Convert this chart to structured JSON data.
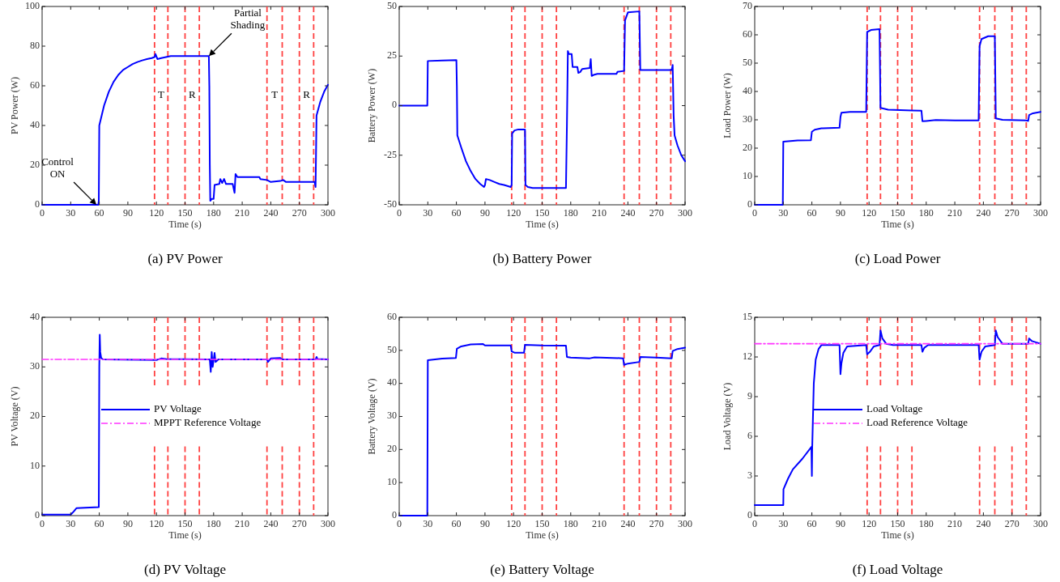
{
  "chart_data": [
    {
      "type": "line",
      "title": "(a) PV Power",
      "xlabel": "Time (s)",
      "ylabel": "PV Power (W)",
      "xlim": [
        0,
        300
      ],
      "xticks": [
        0,
        30,
        60,
        90,
        120,
        150,
        180,
        210,
        240,
        270,
        300
      ],
      "ylim": [
        0,
        100
      ],
      "yticks": [
        0,
        20,
        40,
        60,
        80,
        100
      ],
      "series": [
        {
          "color": "#0000ff",
          "line_style": "solid",
          "x": [
            0,
            59,
            59.5,
            60,
            62,
            65,
            70,
            75,
            80,
            85,
            90,
            95,
            100,
            105,
            110,
            115,
            118,
            119,
            121,
            125,
            130,
            135,
            150,
            165,
            175,
            175.5,
            176,
            176.5,
            178,
            180,
            181,
            186,
            187,
            189,
            191,
            193,
            200,
            202,
            203,
            205,
            228,
            229,
            236,
            240,
            250,
            253,
            256,
            270,
            286,
            287,
            288,
            292,
            296,
            300
          ],
          "values": [
            0,
            0,
            2,
            40,
            44,
            50,
            57,
            62,
            65.5,
            68,
            69.5,
            71,
            72,
            72.8,
            73.5,
            74,
            74.5,
            76,
            73.5,
            74,
            74.5,
            75,
            75,
            75,
            75,
            60,
            20,
            2,
            3,
            3,
            10,
            10.5,
            13,
            11,
            13,
            10.5,
            10.5,
            6,
            15.5,
            14,
            14,
            13,
            12.5,
            11.5,
            12,
            12.5,
            11.5,
            11.5,
            11.5,
            9,
            45,
            52,
            57,
            60.5
          ]
        }
      ],
      "ref_lines": [
        {
          "axis": "x",
          "value": 118,
          "color": "#ff4040",
          "line_style": "dashed"
        },
        {
          "axis": "x",
          "value": 132,
          "color": "#ff4040",
          "line_style": "dashed"
        },
        {
          "axis": "x",
          "value": 150,
          "color": "#ff4040",
          "line_style": "dashed"
        },
        {
          "axis": "x",
          "value": 165,
          "color": "#ff4040",
          "line_style": "dashed"
        },
        {
          "axis": "x",
          "value": 236,
          "color": "#ff4040",
          "line_style": "dashed"
        },
        {
          "axis": "x",
          "value": 252,
          "color": "#ff4040",
          "line_style": "dashed"
        },
        {
          "axis": "x",
          "value": 270,
          "color": "#ff4040",
          "line_style": "dashed"
        },
        {
          "axis": "x",
          "value": 285,
          "color": "#ff4040",
          "line_style": "dashed"
        }
      ],
      "annotations": [
        {
          "text": "Control ON",
          "x": 57,
          "y": 0
        },
        {
          "text": "Partial Shading",
          "x": 175,
          "y": 75
        },
        "T",
        "R",
        "T",
        "R"
      ]
    },
    {
      "type": "line",
      "title": "(b) Battery Power",
      "xlabel": "Time (s)",
      "ylabel": "Battery Power (W)",
      "xlim": [
        0,
        300
      ],
      "xticks": [
        0,
        30,
        60,
        90,
        120,
        150,
        180,
        210,
        240,
        270,
        300
      ],
      "ylim": [
        -50,
        50
      ],
      "yticks": [
        -50,
        -25,
        0,
        25,
        50
      ],
      "series": [
        {
          "color": "#0000ff",
          "line_style": "solid",
          "x": [
            0,
            29.5,
            30,
            45,
            60,
            60.5,
            61,
            65,
            70,
            75,
            80,
            85,
            89,
            90,
            91,
            95,
            100,
            105,
            110,
            117,
            118,
            118.5,
            121,
            125,
            132,
            132.5,
            135,
            140,
            165,
            175,
            176,
            177,
            178,
            181,
            182,
            187,
            188,
            190,
            192,
            200,
            201,
            202,
            204,
            208,
            228,
            229,
            236,
            237,
            240,
            252,
            253,
            270,
            286,
            287,
            288,
            289,
            292,
            296,
            300
          ],
          "values": [
            0,
            0,
            22.5,
            22.8,
            23,
            10,
            -15,
            -21,
            -28,
            -33,
            -37,
            -39.5,
            -41,
            -40,
            -37,
            -37.5,
            -38.5,
            -39.5,
            -40,
            -41,
            -40,
            -14,
            -12.5,
            -12,
            -12,
            -40,
            -41,
            -41.5,
            -41.5,
            -41.5,
            -10,
            27.5,
            26,
            26,
            19.5,
            19.5,
            16.5,
            17,
            18.5,
            19,
            23.5,
            15,
            15.5,
            16,
            16,
            17,
            17.5,
            43,
            47,
            47.5,
            18,
            18,
            18,
            20.5,
            -5,
            -15,
            -20,
            -25,
            -28
          ]
        }
      ],
      "ref_lines": [
        {
          "axis": "x",
          "value": 118,
          "color": "#ff4040",
          "line_style": "dashed"
        },
        {
          "axis": "x",
          "value": 132,
          "color": "#ff4040",
          "line_style": "dashed"
        },
        {
          "axis": "x",
          "value": 150,
          "color": "#ff4040",
          "line_style": "dashed"
        },
        {
          "axis": "x",
          "value": 165,
          "color": "#ff4040",
          "line_style": "dashed"
        },
        {
          "axis": "x",
          "value": 236,
          "color": "#ff4040",
          "line_style": "dashed"
        },
        {
          "axis": "x",
          "value": 252,
          "color": "#ff4040",
          "line_style": "dashed"
        },
        {
          "axis": "x",
          "value": 270,
          "color": "#ff4040",
          "line_style": "dashed"
        },
        {
          "axis": "x",
          "value": 285,
          "color": "#ff4040",
          "line_style": "dashed"
        }
      ]
    },
    {
      "type": "line",
      "title": "(c) Load Power",
      "xlabel": "Time (s)",
      "ylabel": "Load Power (W)",
      "xlim": [
        0,
        300
      ],
      "xticks": [
        0,
        30,
        60,
        90,
        120,
        150,
        180,
        210,
        240,
        270,
        300
      ],
      "ylim": [
        0,
        70
      ],
      "yticks": [
        0,
        10,
        20,
        30,
        40,
        50,
        60,
        70
      ],
      "series": [
        {
          "color": "#0000ff",
          "line_style": "solid",
          "x": [
            0,
            29.5,
            30,
            45,
            59,
            60,
            63,
            70,
            89,
            90,
            91,
            100,
            117,
            118,
            122,
            131,
            132,
            140,
            165,
            175,
            176,
            180,
            190,
            210,
            235,
            236,
            238,
            245,
            252,
            253,
            260,
            285,
            287,
            288,
            292,
            300
          ],
          "values": [
            0,
            0,
            22.3,
            22.7,
            22.8,
            25.8,
            26.5,
            27,
            27.2,
            31,
            32.5,
            32.8,
            32.8,
            61,
            61.7,
            62,
            34.2,
            33.6,
            33.3,
            33.2,
            29.5,
            29.6,
            29.9,
            29.8,
            29.8,
            56,
            58.5,
            59.5,
            59.5,
            30.5,
            30,
            29.8,
            29.6,
            31.7,
            32.3,
            32.8
          ]
        }
      ],
      "ref_lines": [
        {
          "axis": "x",
          "value": 118,
          "color": "#ff4040",
          "line_style": "dashed"
        },
        {
          "axis": "x",
          "value": 132,
          "color": "#ff4040",
          "line_style": "dashed"
        },
        {
          "axis": "x",
          "value": 150,
          "color": "#ff4040",
          "line_style": "dashed"
        },
        {
          "axis": "x",
          "value": 165,
          "color": "#ff4040",
          "line_style": "dashed"
        },
        {
          "axis": "x",
          "value": 236,
          "color": "#ff4040",
          "line_style": "dashed"
        },
        {
          "axis": "x",
          "value": 252,
          "color": "#ff4040",
          "line_style": "dashed"
        },
        {
          "axis": "x",
          "value": 270,
          "color": "#ff4040",
          "line_style": "dashed"
        },
        {
          "axis": "x",
          "value": 285,
          "color": "#ff4040",
          "line_style": "dashed"
        }
      ]
    },
    {
      "type": "line",
      "title": "(d) PV Voltage",
      "xlabel": "Time (s)",
      "ylabel": "PV Voltage (V)",
      "xlim": [
        0,
        300
      ],
      "xticks": [
        0,
        30,
        60,
        90,
        120,
        150,
        180,
        210,
        240,
        270,
        300
      ],
      "ylim": [
        0,
        40
      ],
      "yticks": [
        0,
        10,
        20,
        30,
        40
      ],
      "legend": "center right",
      "series": [
        {
          "name": "PV Voltage",
          "color": "#0000ff",
          "line_style": "solid",
          "x": [
            0,
            30,
            33,
            36,
            45,
            59.5,
            60,
            60.5,
            61,
            62,
            64,
            120,
            125,
            130,
            176,
            177,
            178,
            179,
            181,
            182,
            185,
            236,
            237,
            240,
            250,
            252,
            287,
            288,
            289,
            300
          ],
          "values": [
            0.2,
            0.2,
            0.8,
            1.5,
            1.6,
            1.7,
            30,
            36.5,
            33,
            31.8,
            31.5,
            31.4,
            31.7,
            31.6,
            31.5,
            29,
            33,
            30,
            32.8,
            31,
            31.5,
            31.5,
            31,
            31.7,
            31.8,
            31.5,
            31.5,
            32,
            31.6,
            31.5
          ]
        },
        {
          "name": "MPPT Reference Voltage",
          "color": "#ff33ff",
          "line_style": "dashed",
          "x": [
            0,
            300
          ],
          "values": [
            31.5,
            31.5
          ]
        }
      ],
      "ref_lines": [
        {
          "axis": "x",
          "value": 118,
          "color": "#ff4040",
          "line_style": "dashed"
        },
        {
          "axis": "x",
          "value": 132,
          "color": "#ff4040",
          "line_style": "dashed"
        },
        {
          "axis": "x",
          "value": 150,
          "color": "#ff4040",
          "line_style": "dashed"
        },
        {
          "axis": "x",
          "value": 165,
          "color": "#ff4040",
          "line_style": "dashed"
        },
        {
          "axis": "x",
          "value": 236,
          "color": "#ff4040",
          "line_style": "dashed"
        },
        {
          "axis": "x",
          "value": 252,
          "color": "#ff4040",
          "line_style": "dashed"
        },
        {
          "axis": "x",
          "value": 270,
          "color": "#ff4040",
          "line_style": "dashed"
        },
        {
          "axis": "x",
          "value": 285,
          "color": "#ff4040",
          "line_style": "dashed"
        }
      ]
    },
    {
      "type": "line",
      "title": "(e) Battery Voltage",
      "xlabel": "Time (s)",
      "ylabel": "Battery Voltage (V)",
      "xlim": [
        0,
        300
      ],
      "xticks": [
        0,
        30,
        60,
        90,
        120,
        150,
        180,
        210,
        240,
        270,
        300
      ],
      "ylim": [
        0,
        60
      ],
      "yticks": [
        0,
        10,
        20,
        30,
        40,
        50,
        60
      ],
      "series": [
        {
          "color": "#0000ff",
          "line_style": "solid",
          "x": [
            0,
            29.5,
            30,
            45,
            59.5,
            60.5,
            65,
            75,
            88,
            90,
            117,
            118,
            121,
            131,
            132,
            150,
            175,
            176,
            180,
            200,
            205,
            235,
            236,
            240,
            252,
            253,
            270,
            286,
            287,
            292,
            300
          ],
          "values": [
            0,
            0,
            47,
            47.5,
            47.7,
            50.5,
            51.2,
            51.8,
            51.9,
            51.5,
            51.5,
            49.7,
            49.3,
            49.3,
            51.7,
            51.5,
            51.4,
            48,
            47.8,
            47.6,
            47.9,
            47.6,
            45.6,
            46,
            46.5,
            48,
            47.8,
            47.6,
            49.8,
            50.4,
            50.8
          ]
        }
      ],
      "ref_lines": [
        {
          "axis": "x",
          "value": 118,
          "color": "#ff4040",
          "line_style": "dashed"
        },
        {
          "axis": "x",
          "value": 132,
          "color": "#ff4040",
          "line_style": "dashed"
        },
        {
          "axis": "x",
          "value": 150,
          "color": "#ff4040",
          "line_style": "dashed"
        },
        {
          "axis": "x",
          "value": 165,
          "color": "#ff4040",
          "line_style": "dashed"
        },
        {
          "axis": "x",
          "value": 236,
          "color": "#ff4040",
          "line_style": "dashed"
        },
        {
          "axis": "x",
          "value": 252,
          "color": "#ff4040",
          "line_style": "dashed"
        },
        {
          "axis": "x",
          "value": 270,
          "color": "#ff4040",
          "line_style": "dashed"
        },
        {
          "axis": "x",
          "value": 285,
          "color": "#ff4040",
          "line_style": "dashed"
        }
      ]
    },
    {
      "type": "line",
      "title": "(f) Load Voltage",
      "xlabel": "Time (s)",
      "ylabel": "Load Voltage (V)",
      "xlim": [
        0,
        300
      ],
      "xticks": [
        0,
        30,
        60,
        90,
        120,
        150,
        180,
        210,
        240,
        270,
        300
      ],
      "ylim": [
        0,
        15
      ],
      "yticks": [
        0,
        3,
        6,
        9,
        12,
        15
      ],
      "legend": "center right",
      "series": [
        {
          "name": "Load Voltage",
          "color": "#0000ff",
          "line_style": "solid",
          "x": [
            0,
            30,
            30.2,
            35,
            40,
            50,
            59.5,
            60,
            60.3,
            62,
            64,
            67,
            70,
            89,
            90,
            91,
            93,
            97,
            117,
            118,
            121,
            125,
            131,
            132,
            134,
            138,
            145,
            175,
            176,
            178,
            182,
            235,
            236,
            238,
            242,
            252,
            253,
            255,
            260,
            287,
            288,
            291,
            300
          ],
          "values": [
            0.8,
            0.8,
            2,
            2.8,
            3.5,
            4.3,
            5.2,
            3,
            5,
            10,
            11.8,
            12.6,
            12.9,
            12.9,
            10.7,
            11.5,
            12.3,
            12.8,
            12.9,
            12.2,
            12.4,
            12.8,
            12.9,
            14,
            13.4,
            13,
            12.9,
            12.9,
            12.4,
            12.7,
            12.9,
            12.9,
            11.8,
            12.4,
            12.8,
            12.9,
            14,
            13.5,
            13,
            13,
            13.4,
            13.2,
            13
          ]
        },
        {
          "name": "Load Reference Voltage",
          "color": "#ff33ff",
          "line_style": "dashed",
          "x": [
            0,
            300
          ],
          "values": [
            13,
            13
          ]
        }
      ],
      "ref_lines": [
        {
          "axis": "x",
          "value": 118,
          "color": "#ff4040",
          "line_style": "dashed"
        },
        {
          "axis": "x",
          "value": 132,
          "color": "#ff4040",
          "line_style": "dashed"
        },
        {
          "axis": "x",
          "value": 150,
          "color": "#ff4040",
          "line_style": "dashed"
        },
        {
          "axis": "x",
          "value": 165,
          "color": "#ff4040",
          "line_style": "dashed"
        },
        {
          "axis": "x",
          "value": 236,
          "color": "#ff4040",
          "line_style": "dashed"
        },
        {
          "axis": "x",
          "value": 252,
          "color": "#ff4040",
          "line_style": "dashed"
        },
        {
          "axis": "x",
          "value": 270,
          "color": "#ff4040",
          "line_style": "dashed"
        },
        {
          "axis": "x",
          "value": 285,
          "color": "#ff4040",
          "line_style": "dashed"
        }
      ]
    }
  ]
}
